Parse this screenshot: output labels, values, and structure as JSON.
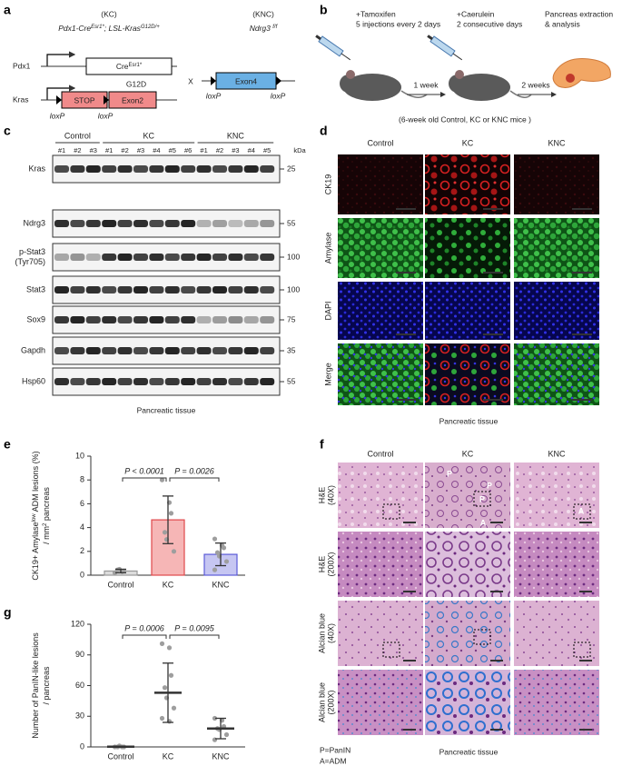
{
  "a": {
    "label": "a",
    "kc_tag": "(KC)",
    "kc_genotype": [
      "Pdx1-Cre",
      "Esr1*",
      "; LSL-Kras",
      "G12D/+"
    ],
    "knc_tag": "(KNC)",
    "knc_genotype": [
      "Ndrg3 ",
      "f/f"
    ],
    "pdx1": "Pdx1",
    "cre": [
      "Cre",
      "Esr1*"
    ],
    "kras": "Kras",
    "stop": "STOP",
    "exon2": "Exon2",
    "g12d": "G12D",
    "loxp": [
      "loxP",
      "loxP",
      "loxP",
      "loxP"
    ],
    "cross": "X",
    "exon4": "Exon4"
  },
  "b": {
    "label": "b",
    "step1": [
      "+Tamoxifen",
      "5 injections every 2 days"
    ],
    "step2": [
      "+Caerulein",
      "2 consecutive days"
    ],
    "step3": [
      "Pancreas extraction",
      "& analysis"
    ],
    "interval1": "1 week",
    "interval2": "2 weeks",
    "note": "(6-week old Control, KC or KNC mice )"
  },
  "c": {
    "label": "c",
    "groups": [
      "Control",
      "KC",
      "KNC"
    ],
    "lanes": [
      "#1",
      "#2",
      "#3",
      "#1",
      "#2",
      "#3",
      "#4",
      "#5",
      "#6",
      "#1",
      "#2",
      "#3",
      "#4",
      "#5"
    ],
    "unit": "kDa",
    "rows": [
      {
        "name": [
          "Kras"
        ],
        "kda": 25
      },
      {
        "name": [
          "Ndrg3"
        ],
        "kda": 55
      },
      {
        "name": [
          "p-Stat3",
          "(Tyr705)"
        ],
        "kda": 100
      },
      {
        "name": [
          "Stat3"
        ],
        "kda": 100
      },
      {
        "name": [
          "Sox9"
        ],
        "kda": 75
      },
      {
        "name": [
          "Gapdh"
        ],
        "kda": 35
      },
      {
        "name": [
          "Hsp60"
        ],
        "kda": 55
      }
    ],
    "footer": "Pancreatic tissue"
  },
  "d": {
    "label": "d",
    "columns": [
      "Control",
      "KC",
      "KNC"
    ],
    "rows": [
      "CK19",
      "Amylase",
      "DAPI",
      "Merge"
    ],
    "footer": "Pancreatic tissue"
  },
  "f": {
    "label": "f",
    "columns": [
      "Control",
      "KC",
      "KNC"
    ],
    "rows": [
      [
        "H&E",
        "(40X)"
      ],
      [
        "H&E",
        "(200X)"
      ],
      [
        "Alcian blue",
        "(40X)"
      ],
      [
        "Alcian blue",
        "(200X)"
      ]
    ],
    "annotations": [
      "P",
      "P",
      "P",
      "A",
      "A"
    ],
    "legend": [
      "P=PanIN",
      "A=ADM"
    ],
    "footer": "Pancreatic tissue"
  },
  "chart_data": [
    {
      "type": "bar",
      "panel_label": "e",
      "ylabel": [
        [
          "CK19+ Amylase",
          "low",
          " ADM lesions (%)"
        ],
        [
          "/ mm",
          "2",
          " pancreas"
        ]
      ],
      "categories": [
        "Control",
        "KC",
        "KNC"
      ],
      "values": [
        0.35,
        4.65,
        1.75
      ],
      "errors": [
        0.15,
        2.0,
        0.95
      ],
      "points": [
        [
          0.2,
          0.3,
          0.35,
          0.45,
          0.5
        ],
        [
          8.0,
          6.1,
          5.2,
          3.6,
          3.0,
          2.0
        ],
        [
          3.05,
          2.5,
          2.3,
          1.9,
          1.6,
          1.15,
          0.45
        ]
      ],
      "colors": [
        "#9a9a9a",
        "#e0484a",
        "#5b5bd8"
      ],
      "fill_colors": [
        "#dcdcdc",
        "#f6b6b6",
        "#c6c6f2"
      ],
      "ylim": [
        0,
        10
      ],
      "yticks": [
        0,
        2,
        4,
        6,
        8,
        10
      ],
      "annotations": [
        "P < 0.0001",
        "P = 0.0026"
      ]
    },
    {
      "type": "dot",
      "panel_label": "g",
      "ylabel": [
        [
          "Number of PanIN-like lesions"
        ],
        [
          "/ pancreas"
        ]
      ],
      "categories": [
        "Control",
        "KC",
        "KNC"
      ],
      "values": [
        0.2,
        53,
        18
      ],
      "errors": [
        0.4,
        29,
        10
      ],
      "points": [
        [
          0,
          0,
          0,
          0,
          1
        ],
        [
          101,
          97,
          70,
          58,
          48,
          38,
          28,
          25
        ],
        [
          28,
          26,
          20,
          18,
          17,
          12,
          7
        ]
      ],
      "colors": [
        "#9a9a9a",
        "#e0282a",
        "#2a2ad0"
      ],
      "ylim": [
        0,
        120
      ],
      "yticks": [
        0,
        30,
        60,
        90,
        120
      ],
      "annotations": [
        "P = 0.0006",
        "P = 0.0095"
      ]
    }
  ]
}
